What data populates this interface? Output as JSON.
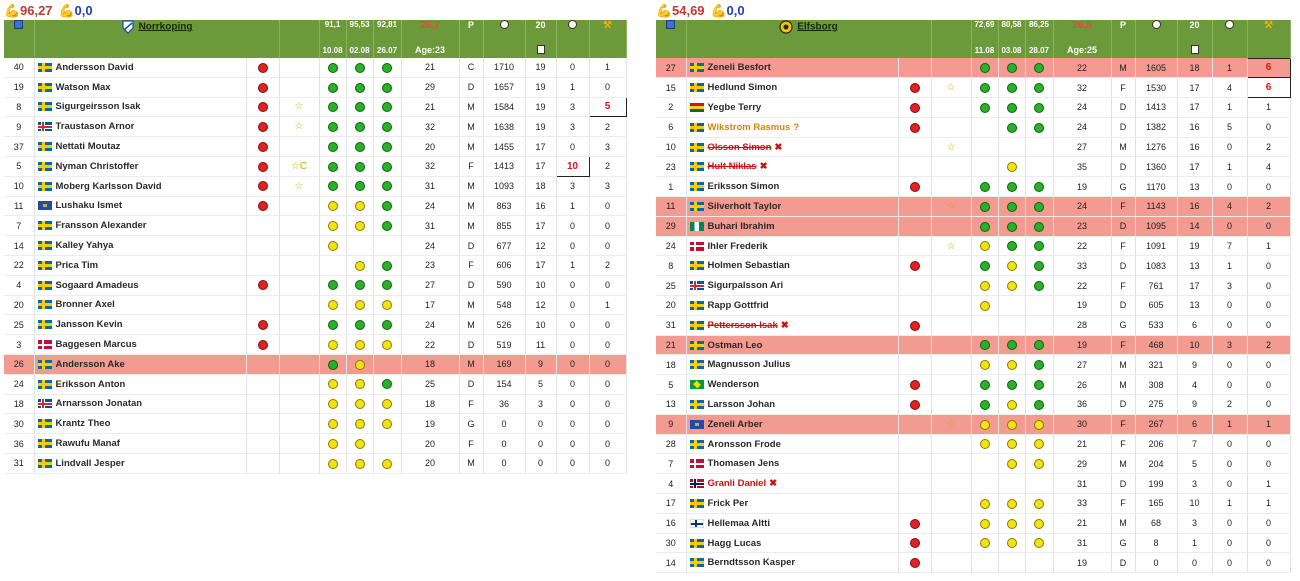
{
  "left": {
    "stat1": "96,27",
    "stat2": "0,0",
    "team": "Norrkoping",
    "dates": [
      {
        "pct": "91,1",
        "date": "10.08"
      },
      {
        "pct": "95,53",
        "date": "02.08"
      },
      {
        "pct": "92,81",
        "date": "26.07"
      }
    ],
    "avg": "26,7",
    "age": "Age:23",
    "pos_hdr": "P",
    "games_hdr": "20",
    "players": [
      {
        "num": "40",
        "flag": "se",
        "name": "Andersson David",
        "mark": "r",
        "star": "",
        "f1": "g",
        "f2": "g",
        "f3": "g",
        "age": "21",
        "pos": "C",
        "val": "1710",
        "gp": "19",
        "g": "0",
        "a": "1"
      },
      {
        "num": "19",
        "flag": "se",
        "name": "Watson Max",
        "mark": "r",
        "star": "",
        "f1": "g",
        "f2": "g",
        "f3": "g",
        "age": "29",
        "pos": "D",
        "val": "1657",
        "gp": "19",
        "g": "1",
        "a": "0"
      },
      {
        "num": "8",
        "flag": "se",
        "name": "Sigurgeirsson Isak",
        "mark": "r",
        "star": "☆",
        "f1": "g",
        "f2": "g",
        "f3": "g",
        "age": "21",
        "pos": "M",
        "val": "1584",
        "gp": "19",
        "g": "3",
        "a": "5",
        "abox": true
      },
      {
        "num": "9",
        "flag": "is",
        "name": "Traustason Arnor",
        "mark": "r",
        "star": "☆",
        "f1": "g",
        "f2": "g",
        "f3": "g",
        "age": "32",
        "pos": "M",
        "val": "1638",
        "gp": "19",
        "g": "3",
        "a": "2"
      },
      {
        "num": "37",
        "flag": "se",
        "name": "Nettati Moutaz",
        "mark": "r",
        "star": "",
        "f1": "g",
        "f2": "g",
        "f3": "g",
        "age": "20",
        "pos": "M",
        "val": "1455",
        "gp": "17",
        "g": "0",
        "a": "3"
      },
      {
        "num": "5",
        "flag": "se",
        "name": "Nyman Christoffer",
        "mark": "r",
        "star": "☆C",
        "f1": "g",
        "f2": "g",
        "f3": "g",
        "age": "32",
        "pos": "F",
        "val": "1413",
        "gp": "17",
        "g": "10",
        "a": "2",
        "gbox": true
      },
      {
        "num": "10",
        "flag": "se",
        "name": "Moberg Karlsson David",
        "mark": "r",
        "star": "☆",
        "f1": "g",
        "f2": "g",
        "f3": "g",
        "age": "31",
        "pos": "M",
        "val": "1093",
        "gp": "18",
        "g": "3",
        "a": "3"
      },
      {
        "num": "11",
        "flag": "ks",
        "name": "Lushaku Ismet",
        "mark": "r",
        "star": "",
        "f1": "y",
        "f2": "y",
        "f3": "g",
        "age": "24",
        "pos": "M",
        "val": "863",
        "gp": "16",
        "g": "1",
        "a": "0"
      },
      {
        "num": "7",
        "flag": "se",
        "name": "Fransson Alexander",
        "mark": "",
        "star": "",
        "f1": "y",
        "f2": "y",
        "f3": "g",
        "age": "31",
        "pos": "M",
        "val": "855",
        "gp": "17",
        "g": "0",
        "a": "0"
      },
      {
        "num": "14",
        "flag": "se",
        "name": "Kalley Yahya",
        "mark": "",
        "star": "",
        "f1": "y",
        "f2": "",
        "f3": "",
        "age": "24",
        "pos": "D",
        "val": "677",
        "gp": "12",
        "g": "0",
        "a": "0"
      },
      {
        "num": "22",
        "flag": "se",
        "name": "Prica Tim",
        "mark": "",
        "star": "",
        "f1": "",
        "f2": "y",
        "f3": "g",
        "age": "23",
        "pos": "F",
        "val": "606",
        "gp": "17",
        "g": "1",
        "a": "2"
      },
      {
        "num": "4",
        "flag": "se",
        "name": "Sogaard Amadeus",
        "mark": "r",
        "star": "",
        "f1": "g",
        "f2": "g",
        "f3": "g",
        "age": "27",
        "pos": "D",
        "val": "590",
        "gp": "10",
        "g": "0",
        "a": "0"
      },
      {
        "num": "20",
        "flag": "se",
        "name": "Bronner Axel",
        "mark": "",
        "star": "",
        "f1": "y",
        "f2": "y",
        "f3": "y",
        "age": "17",
        "pos": "M",
        "val": "548",
        "gp": "12",
        "g": "0",
        "a": "1"
      },
      {
        "num": "25",
        "flag": "se",
        "name": "Jansson Kevin",
        "mark": "r",
        "star": "",
        "f1": "g",
        "f2": "g",
        "f3": "g",
        "age": "24",
        "pos": "M",
        "val": "526",
        "gp": "10",
        "g": "0",
        "a": "0"
      },
      {
        "num": "3",
        "flag": "dk",
        "name": "Baggesen Marcus",
        "mark": "r",
        "star": "",
        "f1": "y",
        "f2": "y",
        "f3": "y",
        "age": "22",
        "pos": "D",
        "val": "519",
        "gp": "11",
        "g": "0",
        "a": "0"
      },
      {
        "num": "26",
        "flag": "se",
        "name": "Andersson Ake",
        "mark": "",
        "star": "",
        "f1": "g",
        "f2": "y",
        "f3": "",
        "age": "18",
        "pos": "M",
        "val": "169",
        "gp": "9",
        "g": "0",
        "a": "0",
        "hl": true
      },
      {
        "num": "24",
        "flag": "se",
        "name": "Eriksson Anton",
        "mark": "",
        "star": "",
        "f1": "y",
        "f2": "y",
        "f3": "g",
        "age": "25",
        "pos": "D",
        "val": "154",
        "gp": "5",
        "g": "0",
        "a": "0"
      },
      {
        "num": "18",
        "flag": "is",
        "name": "Arnarsson Jonatan",
        "mark": "",
        "star": "",
        "f1": "y",
        "f2": "y",
        "f3": "y",
        "age": "18",
        "pos": "F",
        "val": "36",
        "gp": "3",
        "g": "0",
        "a": "0"
      },
      {
        "num": "30",
        "flag": "se",
        "name": "Krantz Theo",
        "mark": "",
        "star": "",
        "f1": "y",
        "f2": "y",
        "f3": "y",
        "age": "19",
        "pos": "G",
        "val": "0",
        "gp": "0",
        "g": "0",
        "a": "0"
      },
      {
        "num": "36",
        "flag": "se",
        "name": "Rawufu Manaf",
        "mark": "",
        "star": "",
        "f1": "y",
        "f2": "y",
        "f3": "",
        "age": "20",
        "pos": "F",
        "val": "0",
        "gp": "0",
        "g": "0",
        "a": "0"
      },
      {
        "num": "31",
        "flag": "se",
        "name": "Lindvall Jesper",
        "mark": "",
        "star": "",
        "f1": "y",
        "f2": "y",
        "f3": "y",
        "age": "20",
        "pos": "M",
        "val": "0",
        "gp": "0",
        "g": "0",
        "a": "0"
      }
    ]
  },
  "right": {
    "stat1": "54,69",
    "stat2": "0,0",
    "team": "Elfsborg",
    "dates": [
      {
        "pct": "72,69",
        "date": "11.08"
      },
      {
        "pct": "80,58",
        "date": "03.08"
      },
      {
        "pct": "86,25",
        "date": "28.07"
      }
    ],
    "avg": "26,5",
    "age": "Age:25",
    "pos_hdr": "P",
    "games_hdr": "20",
    "players": [
      {
        "num": "27",
        "flag": "se",
        "name": "Zeneli Besfort",
        "mark": "",
        "star": "",
        "f1": "g",
        "f2": "g",
        "f3": "g",
        "age": "22",
        "pos": "M",
        "val": "1605",
        "gp": "18",
        "g": "1",
        "a": "6",
        "hl": true,
        "abox": true
      },
      {
        "num": "15",
        "flag": "se",
        "name": "Hedlund Simon",
        "mark": "r",
        "star": "☆",
        "f1": "g",
        "f2": "g",
        "f3": "g",
        "age": "32",
        "pos": "F",
        "val": "1530",
        "gp": "17",
        "g": "4",
        "a": "6",
        "abox": true
      },
      {
        "num": "2",
        "flag": "gh",
        "name": "Yegbe Terry",
        "mark": "r",
        "star": "",
        "f1": "g",
        "f2": "g",
        "f3": "g",
        "age": "24",
        "pos": "D",
        "val": "1413",
        "gp": "17",
        "g": "1",
        "a": "1"
      },
      {
        "num": "6",
        "flag": "se",
        "name": "Wikstrom Rasmus",
        "mark": "r",
        "star": "",
        "f1": "",
        "f2": "g",
        "f3": "g",
        "age": "24",
        "pos": "D",
        "val": "1382",
        "gp": "16",
        "g": "5",
        "a": "0",
        "status": "inj"
      },
      {
        "num": "10",
        "flag": "se",
        "name": "Olsson Simon",
        "mark": "",
        "star": "☆",
        "f1": "",
        "f2": "",
        "f3": "",
        "age": "27",
        "pos": "M",
        "val": "1276",
        "gp": "16",
        "g": "0",
        "a": "2",
        "status": "sus"
      },
      {
        "num": "23",
        "flag": "se",
        "name": "Hult Niklas",
        "mark": "",
        "star": "",
        "f1": "",
        "f2": "y",
        "f3": "",
        "age": "35",
        "pos": "D",
        "val": "1360",
        "gp": "17",
        "g": "1",
        "a": "4",
        "status": "sus"
      },
      {
        "num": "1",
        "flag": "se",
        "name": "Eriksson Simon",
        "mark": "r",
        "star": "",
        "f1": "g",
        "f2": "g",
        "f3": "g",
        "age": "19",
        "pos": "G",
        "val": "1170",
        "gp": "13",
        "g": "0",
        "a": "0"
      },
      {
        "num": "11",
        "flag": "se",
        "name": "Silverholt Taylor",
        "mark": "",
        "star": "☆",
        "f1": "g",
        "f2": "g",
        "f3": "g",
        "age": "24",
        "pos": "F",
        "val": "1143",
        "gp": "16",
        "g": "4",
        "a": "2",
        "hl": true
      },
      {
        "num": "29",
        "flag": "ng",
        "name": "Buhari Ibrahim",
        "mark": "",
        "star": "",
        "f1": "g",
        "f2": "g",
        "f3": "g",
        "age": "23",
        "pos": "D",
        "val": "1095",
        "gp": "14",
        "g": "0",
        "a": "0",
        "hl": true
      },
      {
        "num": "24",
        "flag": "dk",
        "name": "Ihler Frederik",
        "mark": "",
        "star": "☆",
        "f1": "y",
        "f2": "g",
        "f3": "g",
        "age": "22",
        "pos": "F",
        "val": "1091",
        "gp": "19",
        "g": "7",
        "a": "1"
      },
      {
        "num": "8",
        "flag": "se",
        "name": "Holmen Sebastian",
        "mark": "r",
        "star": "",
        "f1": "g",
        "f2": "y",
        "f3": "g",
        "age": "33",
        "pos": "D",
        "val": "1083",
        "gp": "13",
        "g": "1",
        "a": "0"
      },
      {
        "num": "25",
        "flag": "is",
        "name": "Sigurpalsson Ari",
        "mark": "",
        "star": "",
        "f1": "y",
        "f2": "y",
        "f3": "g",
        "age": "22",
        "pos": "F",
        "val": "761",
        "gp": "17",
        "g": "3",
        "a": "0"
      },
      {
        "num": "20",
        "flag": "se",
        "name": "Rapp Gottfrid",
        "mark": "",
        "star": "",
        "f1": "y",
        "f2": "",
        "f3": "",
        "age": "19",
        "pos": "D",
        "val": "605",
        "gp": "13",
        "g": "0",
        "a": "0"
      },
      {
        "num": "31",
        "flag": "se",
        "name": "Pettersson Isak",
        "mark": "r",
        "star": "",
        "f1": "",
        "f2": "",
        "f3": "",
        "age": "28",
        "pos": "G",
        "val": "533",
        "gp": "6",
        "g": "0",
        "a": "0",
        "status": "sus"
      },
      {
        "num": "21",
        "flag": "se",
        "name": "Ostman Leo",
        "mark": "",
        "star": "",
        "f1": "g",
        "f2": "g",
        "f3": "g",
        "age": "19",
        "pos": "F",
        "val": "468",
        "gp": "10",
        "g": "3",
        "a": "2",
        "hl": true
      },
      {
        "num": "18",
        "flag": "se",
        "name": "Magnusson Julius",
        "mark": "",
        "star": "",
        "f1": "y",
        "f2": "y",
        "f3": "g",
        "age": "27",
        "pos": "M",
        "val": "321",
        "gp": "9",
        "g": "0",
        "a": "0"
      },
      {
        "num": "5",
        "flag": "br",
        "name": "Wenderson",
        "mark": "r",
        "star": "",
        "f1": "g",
        "f2": "g",
        "f3": "g",
        "age": "26",
        "pos": "M",
        "val": "308",
        "gp": "4",
        "g": "0",
        "a": "0"
      },
      {
        "num": "13",
        "flag": "se",
        "name": "Larsson Johan",
        "mark": "r",
        "star": "",
        "f1": "g",
        "f2": "y",
        "f3": "g",
        "age": "36",
        "pos": "D",
        "val": "275",
        "gp": "9",
        "g": "2",
        "a": "0"
      },
      {
        "num": "9",
        "flag": "ks",
        "name": "Zeneli Arber",
        "mark": "",
        "star": "☆",
        "f1": "y",
        "f2": "y",
        "f3": "y",
        "age": "30",
        "pos": "F",
        "val": "267",
        "gp": "6",
        "g": "1",
        "a": "1",
        "hl": true
      },
      {
        "num": "28",
        "flag": "se",
        "name": "Aronsson Frode",
        "mark": "",
        "star": "",
        "f1": "y",
        "f2": "y",
        "f3": "y",
        "age": "21",
        "pos": "F",
        "val": "206",
        "gp": "7",
        "g": "0",
        "a": "0"
      },
      {
        "num": "7",
        "flag": "dk",
        "name": "Thomasen Jens",
        "mark": "",
        "star": "",
        "f1": "",
        "f2": "y",
        "f3": "y",
        "age": "29",
        "pos": "M",
        "val": "204",
        "gp": "5",
        "g": "0",
        "a": "0"
      },
      {
        "num": "4",
        "flag": "no",
        "name": "Granli Daniel",
        "mark": "",
        "star": "",
        "f1": "",
        "f2": "",
        "f3": "",
        "age": "31",
        "pos": "D",
        "val": "199",
        "gp": "3",
        "g": "0",
        "a": "1",
        "status": "red"
      },
      {
        "num": "17",
        "flag": "se",
        "name": "Frick Per",
        "mark": "",
        "star": "",
        "f1": "y",
        "f2": "y",
        "f3": "y",
        "age": "33",
        "pos": "F",
        "val": "165",
        "gp": "10",
        "g": "1",
        "a": "1"
      },
      {
        "num": "16",
        "flag": "fi",
        "name": "Hellemaa Altti",
        "mark": "r",
        "star": "",
        "f1": "y",
        "f2": "y",
        "f3": "y",
        "age": "21",
        "pos": "M",
        "val": "68",
        "gp": "3",
        "g": "0",
        "a": "0"
      },
      {
        "num": "30",
        "flag": "se",
        "name": "Hagg Lucas",
        "mark": "r",
        "star": "",
        "f1": "y",
        "f2": "y",
        "f3": "y",
        "age": "31",
        "pos": "G",
        "val": "8",
        "gp": "1",
        "g": "0",
        "a": "0"
      },
      {
        "num": "14",
        "flag": "se",
        "name": "Berndtsson Kasper",
        "mark": "r",
        "star": "",
        "f1": "",
        "f2": "",
        "f3": "",
        "age": "19",
        "pos": "D",
        "val": "0",
        "gp": "0",
        "g": "0",
        "a": "0"
      }
    ]
  },
  "icons": {
    "arm": "flexed-arm-icon",
    "inj": "?",
    "x": "✖"
  }
}
